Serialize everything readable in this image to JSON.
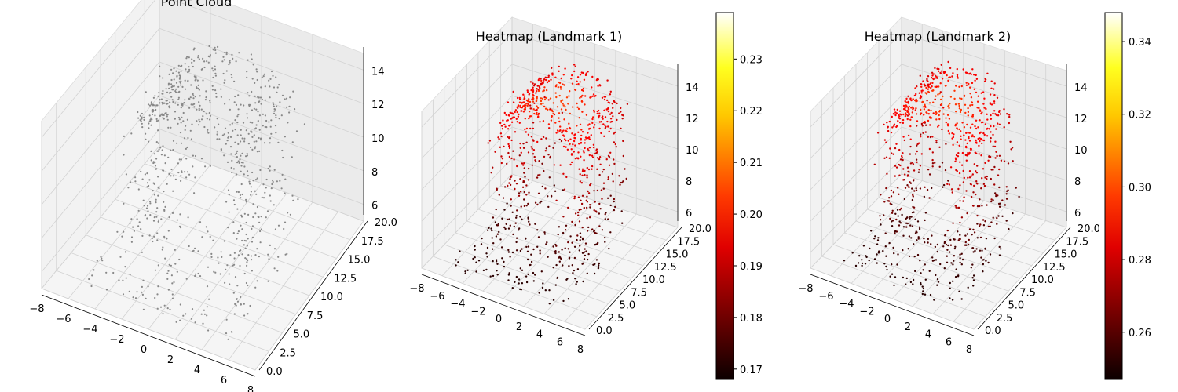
{
  "figure": {
    "background": "#ffffff"
  },
  "chart_data": [
    {
      "type": "scatter",
      "projection": "3d",
      "title": "Point Cloud",
      "point_color": "#888888",
      "xlim": [
        -8,
        8
      ],
      "ylim": [
        0,
        20
      ],
      "zlim": [
        5,
        15
      ],
      "x_ticks": [
        "−8",
        "−6",
        "−4",
        "−2",
        "0",
        "2",
        "4",
        "6",
        "8"
      ],
      "y_ticks": [
        "0.0",
        "2.5",
        "5.0",
        "7.5",
        "10.0",
        "12.5",
        "15.0",
        "17.5",
        "20.0"
      ],
      "z_ticks": [
        "6",
        "8",
        "10",
        "12",
        "14"
      ],
      "grid": true
    },
    {
      "type": "scatter",
      "projection": "3d",
      "title": "Heatmap (Landmark 1)",
      "colormap": "hot",
      "xlim": [
        -8,
        8
      ],
      "ylim": [
        0,
        20
      ],
      "zlim": [
        5,
        15
      ],
      "x_ticks": [
        "−8",
        "−6",
        "−4",
        "−2",
        "0",
        "2",
        "4",
        "6",
        "8"
      ],
      "y_ticks": [
        "0.0",
        "2.5",
        "5.0",
        "7.5",
        "10.0",
        "12.5",
        "15.0",
        "17.5",
        "20.0"
      ],
      "z_ticks": [
        "6",
        "8",
        "10",
        "12",
        "14"
      ],
      "grid": true,
      "colorbar": {
        "min": 0.168,
        "max": 0.239,
        "ticks": [
          "0.17",
          "0.18",
          "0.19",
          "0.20",
          "0.21",
          "0.22",
          "0.23"
        ]
      }
    },
    {
      "type": "scatter",
      "projection": "3d",
      "title": "Heatmap (Landmark 2)",
      "colormap": "hot",
      "xlim": [
        -8,
        8
      ],
      "ylim": [
        0,
        20
      ],
      "zlim": [
        5,
        15
      ],
      "x_ticks": [
        "−8",
        "−6",
        "−4",
        "−2",
        "0",
        "2",
        "4",
        "6",
        "8"
      ],
      "y_ticks": [
        "0.0",
        "2.5",
        "5.0",
        "7.5",
        "10.0",
        "12.5",
        "15.0",
        "17.5",
        "20.0"
      ],
      "z_ticks": [
        "6",
        "8",
        "10",
        "12",
        "14"
      ],
      "grid": true,
      "colorbar": {
        "min": 0.247,
        "max": 0.348,
        "ticks": [
          "0.26",
          "0.28",
          "0.30",
          "0.32",
          "0.34"
        ]
      }
    }
  ]
}
